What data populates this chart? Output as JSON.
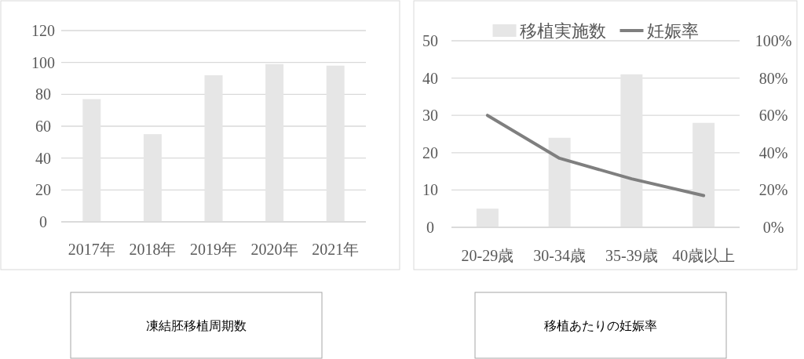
{
  "chart_data": [
    {
      "type": "bar",
      "title": "凍結胚移植周期数",
      "categories": [
        "2017年",
        "2018年",
        "2019年",
        "2020年",
        "2021年"
      ],
      "series": [
        {
          "color": "#e6e6e6",
          "values": [
            77,
            55,
            92,
            99,
            98
          ]
        }
      ],
      "ylim": [
        0,
        120
      ],
      "yticks": [
        0,
        20,
        40,
        60,
        80,
        100,
        120
      ],
      "grid": "y"
    },
    {
      "type": "bar",
      "title": "移植あたりの妊娠率",
      "categories": [
        "20-29歳",
        "30-34歳",
        "35-39歳",
        "40歳以上"
      ],
      "series": [
        {
          "name": "移植実施数",
          "color": "#e6e6e6",
          "values": [
            5,
            24,
            41,
            28
          ]
        },
        {
          "name": "妊娠率",
          "type": "line",
          "axis": "y2",
          "color": "#7f7f7f",
          "values": [
            60,
            37,
            26,
            17
          ]
        }
      ],
      "ylim": [
        0,
        50
      ],
      "yticks": [
        0,
        10,
        20,
        30,
        40,
        50
      ],
      "y2lim": [
        0,
        100
      ],
      "y2ticks": [
        {
          "value": 0,
          "label": "0%"
        },
        {
          "value": 20,
          "label": "20%"
        },
        {
          "value": 40,
          "label": "40%"
        },
        {
          "value": 60,
          "label": "60%"
        },
        {
          "value": 80,
          "label": "80%"
        },
        {
          "value": 100,
          "label": "100%"
        }
      ],
      "grid": "y",
      "legend": "top"
    }
  ]
}
